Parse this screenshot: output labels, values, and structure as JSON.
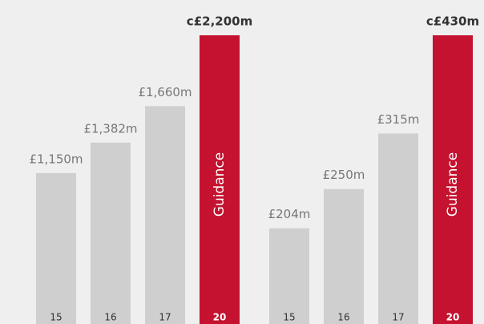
{
  "chart_data": [
    {
      "type": "bar",
      "categories": [
        "15",
        "16",
        "17",
        "20"
      ],
      "values": [
        1150,
        1382,
        1660,
        2200
      ],
      "value_labels": [
        "£1,150m",
        "£1,382m",
        "£1,660m",
        "c£2,200m"
      ],
      "colors": [
        "#cfcfcf",
        "#cfcfcf",
        "#cfcfcf",
        "#c41230"
      ],
      "annotation": "Guidance",
      "ylim": [
        0,
        2200
      ]
    },
    {
      "type": "bar",
      "categories": [
        "15",
        "16",
        "17",
        "20"
      ],
      "values": [
        204,
        250,
        315,
        430
      ],
      "value_labels": [
        "£204m",
        "£250m",
        "£315m",
        "c£430m"
      ],
      "colors": [
        "#cfcfcf",
        "#cfcfcf",
        "#cfcfcf",
        "#c41230"
      ],
      "annotation": "Guidance",
      "ylim": [
        92,
        430
      ]
    }
  ]
}
